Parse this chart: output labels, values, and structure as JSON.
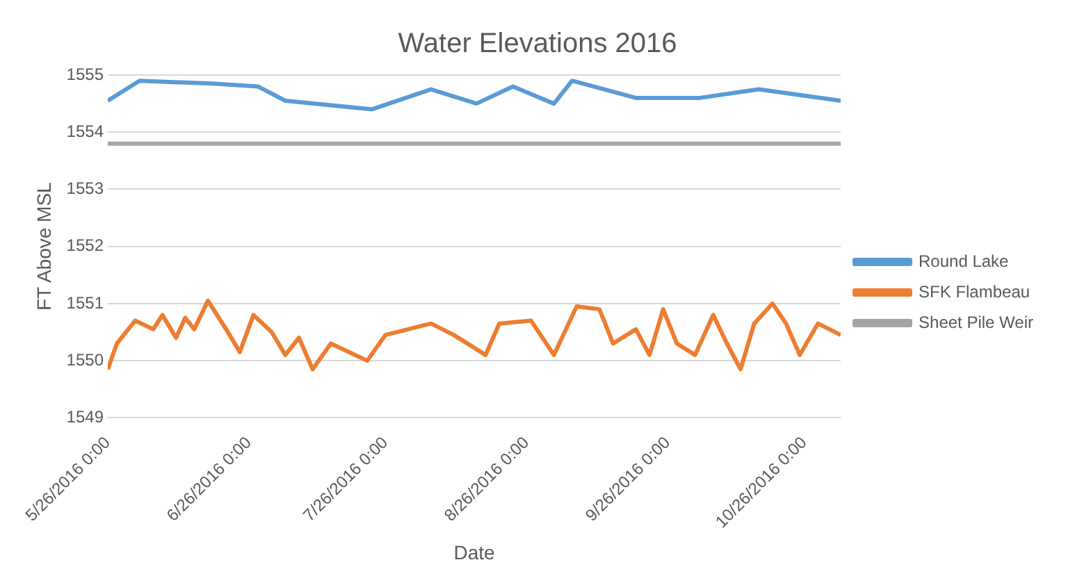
{
  "chart_data": {
    "type": "line",
    "title": "Water Elevations 2016",
    "xlabel": "Date",
    "ylabel": "FT Above MSL",
    "xlim": [
      "2016-05-26",
      "2016-11-03"
    ],
    "xticks": [
      {
        "value": "2016-05-26",
        "label": "5/26/2016 0:00"
      },
      {
        "value": "2016-06-26",
        "label": "6/26/2016 0:00"
      },
      {
        "value": "2016-07-26",
        "label": "7/26/2016 0:00"
      },
      {
        "value": "2016-08-26",
        "label": "8/26/2016 0:00"
      },
      {
        "value": "2016-09-26",
        "label": "9/26/2016 0:00"
      },
      {
        "value": "2016-10-26",
        "label": "10/26/2016 0:00"
      }
    ],
    "ylim": [
      1549,
      1555
    ],
    "yticks": [
      1549,
      1550,
      1551,
      1552,
      1553,
      1554,
      1555
    ],
    "grid": "y",
    "legend": "right",
    "marker": "none",
    "line_style": "solid",
    "series": [
      {
        "name": "Round Lake",
        "color": "#5b9bd5",
        "x": [
          "2016-05-26",
          "2016-06-02",
          "2016-06-18",
          "2016-06-28",
          "2016-07-04",
          "2016-07-23",
          "2016-08-05",
          "2016-08-15",
          "2016-08-23",
          "2016-09-01",
          "2016-09-05",
          "2016-09-19",
          "2016-10-03",
          "2016-10-16",
          "2016-11-03"
        ],
        "values": [
          1554.55,
          1554.9,
          1554.85,
          1554.8,
          1554.55,
          1554.4,
          1554.75,
          1554.5,
          1554.8,
          1554.5,
          1554.9,
          1554.6,
          1554.6,
          1554.75,
          1554.55
        ]
      },
      {
        "name": "SFK Flambeau",
        "color": "#ed7d31",
        "x": [
          "2016-05-26",
          "2016-05-28",
          "2016-06-01",
          "2016-06-05",
          "2016-06-07",
          "2016-06-10",
          "2016-06-12",
          "2016-06-14",
          "2016-06-17",
          "2016-06-21",
          "2016-06-24",
          "2016-06-27",
          "2016-07-01",
          "2016-07-04",
          "2016-07-07",
          "2016-07-10",
          "2016-07-14",
          "2016-07-18",
          "2016-07-22",
          "2016-07-26",
          "2016-07-31",
          "2016-08-05",
          "2016-08-10",
          "2016-08-17",
          "2016-08-20",
          "2016-08-27",
          "2016-09-01",
          "2016-09-06",
          "2016-09-11",
          "2016-09-14",
          "2016-09-19",
          "2016-09-22",
          "2016-09-25",
          "2016-09-28",
          "2016-10-02",
          "2016-10-06",
          "2016-10-09",
          "2016-10-12",
          "2016-10-15",
          "2016-10-19",
          "2016-10-22",
          "2016-10-25",
          "2016-10-29",
          "2016-11-03"
        ],
        "values": [
          1549.85,
          1550.3,
          1550.7,
          1550.55,
          1550.8,
          1550.4,
          1550.75,
          1550.55,
          1551.05,
          1550.55,
          1550.15,
          1550.8,
          1550.5,
          1550.1,
          1550.4,
          1549.85,
          1550.3,
          1550.15,
          1550,
          1550.45,
          1550.55,
          1550.65,
          1550.45,
          1550.1,
          1550.65,
          1550.7,
          1550.1,
          1550.95,
          1550.9,
          1550.3,
          1550.55,
          1550.1,
          1550.9,
          1550.3,
          1550.1,
          1550.8,
          1550.3,
          1549.85,
          1550.65,
          1551,
          1550.65,
          1550.1,
          1550.65,
          1550.45
        ]
      },
      {
        "name": "Sheet Pile Weir",
        "color": "#a5a5a5",
        "x": [
          "2016-05-26",
          "2016-11-03"
        ],
        "values": [
          1553.8,
          1553.8
        ]
      }
    ]
  }
}
